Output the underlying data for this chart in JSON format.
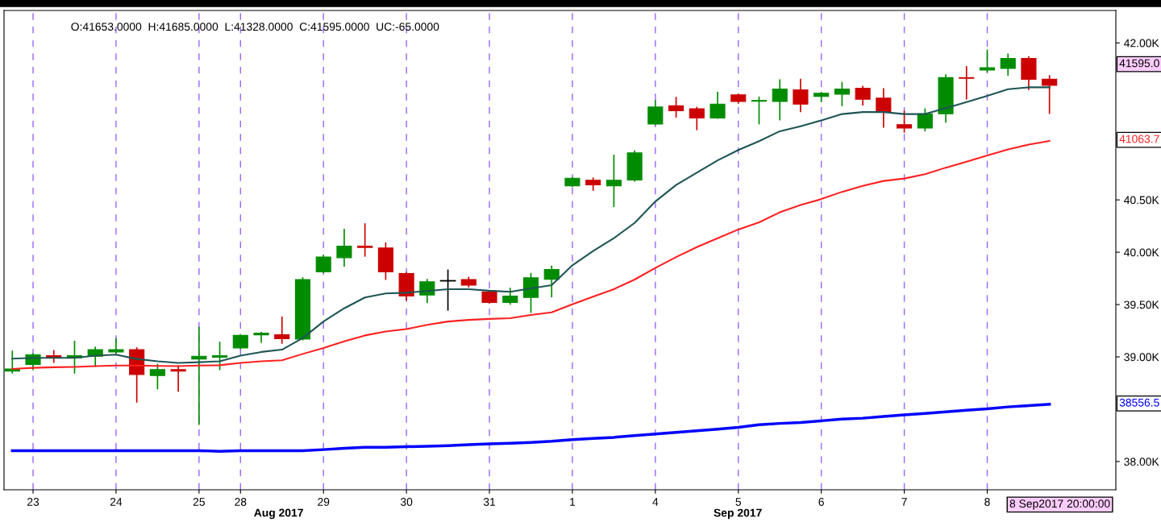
{
  "chart_data": {
    "type": "candlestick",
    "categories": [
      null,
      "23",
      null,
      null,
      null,
      "24",
      null,
      null,
      null,
      "25",
      null,
      "28",
      null,
      null,
      null,
      "29",
      null,
      null,
      null,
      "30",
      null,
      null,
      null,
      "31",
      null,
      null,
      null,
      "1",
      null,
      null,
      null,
      "4",
      null,
      null,
      null,
      "5",
      null,
      null,
      null,
      "6",
      null,
      null,
      null,
      "7",
      null,
      null,
      null,
      "8",
      null,
      null,
      null
    ],
    "ohlc": [
      [
        38863,
        39053,
        38847,
        38885
      ],
      [
        38927,
        39028,
        38879,
        39021
      ],
      [
        39012,
        39059,
        38949,
        38990
      ],
      [
        38990,
        39148,
        38847,
        39012
      ],
      [
        39006,
        39091,
        38911,
        39069
      ],
      [
        39047,
        39173,
        39037,
        39069
      ],
      [
        39069,
        39085,
        38569,
        38832
      ],
      [
        38822,
        38927,
        38696,
        38879
      ],
      [
        38879,
        38911,
        38674,
        38863
      ],
      [
        38980,
        39281,
        38357,
        39006
      ],
      [
        38996,
        39138,
        38879,
        39012
      ],
      [
        39085,
        39211,
        39079,
        39205
      ],
      [
        39211,
        39233,
        39142,
        39227
      ],
      [
        39211,
        39379,
        39132,
        39173
      ],
      [
        39170,
        39755,
        39164,
        39739
      ],
      [
        39812,
        39970,
        39806,
        39954
      ],
      [
        39948,
        40217,
        39869,
        40059
      ],
      [
        40059,
        40270,
        39964,
        40046
      ],
      [
        40040,
        40087,
        39742,
        39812
      ],
      [
        39796,
        39806,
        39543,
        39581
      ],
      [
        39591,
        39739,
        39521,
        39717
      ],
      [
        39727,
        39828,
        39448,
        39727
      ],
      [
        39739,
        39758,
        39670,
        39685
      ],
      [
        39622,
        39628,
        39515,
        39521
      ],
      [
        39521,
        39654,
        39505,
        39581
      ],
      [
        39568,
        39796,
        39426,
        39755
      ],
      [
        39742,
        39866,
        39575,
        39834
      ],
      [
        40634,
        40713,
        40628,
        40707
      ],
      [
        40688,
        40707,
        40593,
        40643
      ],
      [
        40634,
        40925,
        40438,
        40688
      ],
      [
        40691,
        40966,
        40681,
        40950
      ],
      [
        41225,
        41447,
        41219,
        41387
      ],
      [
        41399,
        41478,
        41292,
        41352
      ],
      [
        41371,
        41383,
        41172,
        41282
      ],
      [
        41282,
        41526,
        41282,
        41415
      ],
      [
        41504,
        41510,
        41425,
        41440
      ],
      [
        41443,
        41481,
        41228,
        41450
      ],
      [
        41440,
        41646,
        41266,
        41560
      ],
      [
        41551,
        41652,
        41345,
        41415
      ],
      [
        41488,
        41526,
        41440,
        41519
      ],
      [
        41510,
        41621,
        41402,
        41560
      ],
      [
        41567,
        41583,
        41409,
        41462
      ],
      [
        41472,
        41560,
        41197,
        41339
      ],
      [
        41219,
        41345,
        41149,
        41187
      ],
      [
        41187,
        41368,
        41162,
        41323
      ],
      [
        41323,
        41693,
        41244,
        41668
      ],
      [
        41668,
        41772,
        41466,
        41662
      ],
      [
        41741,
        41930,
        41725,
        41763
      ],
      [
        41757,
        41892,
        41693,
        41851
      ],
      [
        41851,
        41867,
        41557,
        41652
      ],
      [
        41653,
        41685,
        41328,
        41595
      ]
    ],
    "colors": [
      "#008c00",
      "#008c00",
      "#cc0000",
      "#008c00",
      "#008c00",
      "#008c00",
      "#cc0000",
      "#008c00",
      "#cc0000",
      "#008c00",
      "#008c00",
      "#008c00",
      "#008c00",
      "#cc0000",
      "#008c00",
      "#008c00",
      "#008c00",
      "#cc0000",
      "#cc0000",
      "#cc0000",
      "#008c00",
      "#000000",
      "#cc0000",
      "#cc0000",
      "#008c00",
      "#008c00",
      "#008c00",
      "#008c00",
      "#cc0000",
      "#008c00",
      "#008c00",
      "#008c00",
      "#cc0000",
      "#cc0000",
      "#008c00",
      "#cc0000",
      "#008c00",
      "#008c00",
      "#cc0000",
      "#008c00",
      "#008c00",
      "#cc0000",
      "#cc0000",
      "#cc0000",
      "#008c00",
      "#008c00",
      "#cc0000",
      "#008c00",
      "#008c00",
      "#cc0000",
      "#cc0000"
    ],
    "series": [
      {
        "type": "line",
        "color": "#1f5555",
        "values": [
          38983,
          38990,
          38990,
          38990,
          39012,
          39021,
          38980,
          38958,
          38942,
          38949,
          38958,
          39012,
          39047,
          39069,
          39180,
          39338,
          39464,
          39568,
          39606,
          39613,
          39629,
          39647,
          39647,
          39632,
          39622,
          39654,
          39685,
          39875,
          40011,
          40134,
          40280,
          40485,
          40643,
          40760,
          40877,
          40976,
          41061,
          41156,
          41203,
          41260,
          41320,
          41339,
          41339,
          41320,
          41320,
          41377,
          41434,
          41494,
          41557,
          41576,
          41576
        ]
      },
      {
        "type": "line",
        "color": "#ff2020",
        "values": [
          38885,
          38895,
          38901,
          38904,
          38911,
          38917,
          38917,
          38914,
          38911,
          38917,
          38920,
          38942,
          38958,
          38968,
          39028,
          39085,
          39148,
          39205,
          39243,
          39265,
          39306,
          39338,
          39353,
          39363,
          39369,
          39401,
          39426,
          39502,
          39575,
          39647,
          39739,
          39850,
          39954,
          40049,
          40134,
          40217,
          40286,
          40381,
          40451,
          40508,
          40577,
          40634,
          40681,
          40704,
          40745,
          40808,
          40865,
          40925,
          40982,
          41029,
          41064
        ]
      },
      {
        "type": "line",
        "color": "#0000ff",
        "values": [
          38104,
          38104,
          38104,
          38104,
          38104,
          38104,
          38104,
          38104,
          38104,
          38104,
          38098,
          38104,
          38104,
          38104,
          38104,
          38114,
          38127,
          38136,
          38136,
          38142,
          38146,
          38152,
          38161,
          38168,
          38174,
          38183,
          38193,
          38209,
          38221,
          38231,
          38247,
          38263,
          38278,
          38294,
          38310,
          38326,
          38351,
          38364,
          38373,
          38389,
          38405,
          38414,
          38430,
          38446,
          38459,
          38474,
          38490,
          38503,
          38522,
          38534,
          38547
        ]
      }
    ],
    "ylim": [
      37730,
      42310
    ],
    "yticks": [
      {
        "value": 38000,
        "label": "38.00K"
      },
      {
        "value": 39000,
        "label": "39.00K"
      },
      {
        "value": 39500,
        "label": "39.50K"
      },
      {
        "value": 40000,
        "label": "40.00K"
      },
      {
        "value": 40500,
        "label": "40.50K"
      },
      {
        "value": 42000,
        "label": "42.00K"
      }
    ],
    "grid": "x",
    "annotations": [
      "O:41653.0000  H:41685.0000  L:41328.0000  C:41595.0000  UC:-65.0000",
      "Aug 2017",
      "Sep 2017",
      "8 Sep2017 20:00:00",
      "41595.0",
      "41063.7",
      "38556.5"
    ]
  }
}
